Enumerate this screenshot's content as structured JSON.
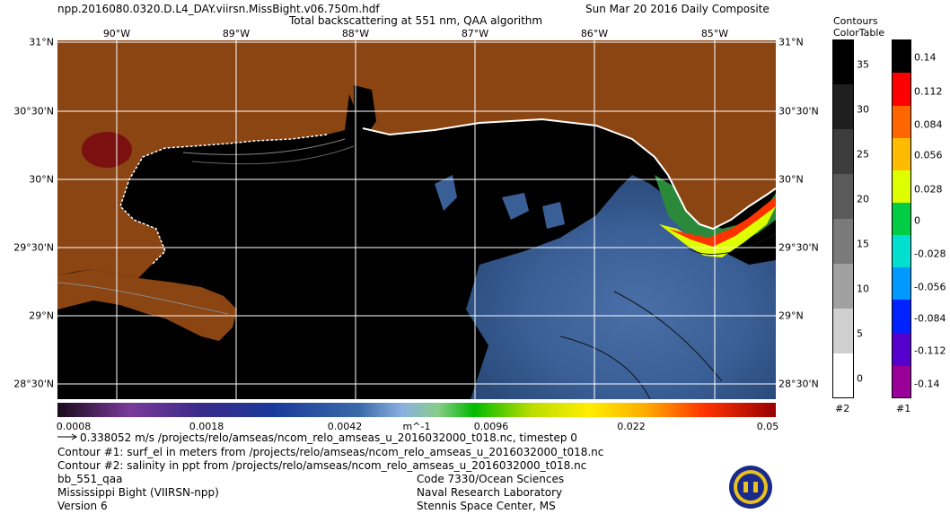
{
  "header": {
    "filename": "npp.2016080.0320.D.L4_DAY.viirsn.MissBight.v06.750m.hdf",
    "subtitle": "Total backscattering at 551 nm, QAA algorithm",
    "date": "Sun Mar 20 2016 Daily Composite"
  },
  "map": {
    "lon_ticks": [
      "90°W",
      "89°W",
      "88°W",
      "87°W",
      "86°W",
      "85°W"
    ],
    "lon_values": [
      -90,
      -89,
      -88,
      -87,
      -86,
      -85
    ],
    "lat_ticks_left": [
      "31°N",
      "30°30'N",
      "30°N",
      "29°30'N",
      "29°N",
      "28°30'N"
    ],
    "lat_ticks_right": [
      "31°N",
      "30°30'N",
      "30°N",
      "29°30'N",
      "29°N",
      "28°30'N"
    ],
    "lat_values": [
      31,
      30.5,
      30,
      29.5,
      29,
      28.5
    ],
    "extent": {
      "lon_min": -90.5,
      "lon_max": -84.5,
      "lat_min": 28.35,
      "lat_max": 31
    },
    "colors": {
      "land": "#8b4513",
      "water": "#000000",
      "coast": "#ffffff"
    }
  },
  "colorbar": {
    "labels": [
      "0.0008",
      "0.0018",
      "0.0042",
      "0.0096",
      "0.022",
      "0.05"
    ],
    "unit": "m^-1"
  },
  "contours_table": {
    "title_line1": "Contours",
    "title_line2": "ColorTable",
    "labels": [
      "35",
      "30",
      "25",
      "20",
      "15",
      "10",
      "5",
      "0"
    ],
    "footer": "#2"
  },
  "table1": {
    "labels": [
      "0.14",
      "0.112",
      "0.084",
      "0.056",
      "0.028",
      "0",
      "-0.028",
      "-0.056",
      "-0.084",
      "-0.112",
      "-0.14"
    ],
    "colors": [
      "#000000",
      "#ff0000",
      "#ff6600",
      "#ffbb00",
      "#ddff00",
      "#00cc44",
      "#00e0d0",
      "#0099ff",
      "#0022ff",
      "#5500cc",
      "#990099"
    ],
    "footer": "#1"
  },
  "footer": {
    "vector_line": "0.338052 m/s /projects/relo/amseas/ncom_relo_amseas_u_2016032000_t018.nc, timestep 0",
    "contour1": "Contour #1: surf_el in meters from /projects/relo/amseas/ncom_relo_amseas_u_2016032000_t018.nc",
    "contour2": "Contour #2: salinity in ppt from /projects/relo/amseas/ncom_relo_amseas_u_2016032000_t018.nc",
    "product": "bb_551_qaa",
    "region": "Mississippi Bight (VIIRSN-npp)",
    "version": "Version 6",
    "org1": "Code 7330/Ocean Sciences",
    "org2": "Naval Research Laboratory",
    "org3": "Stennis Space Center, MS"
  }
}
